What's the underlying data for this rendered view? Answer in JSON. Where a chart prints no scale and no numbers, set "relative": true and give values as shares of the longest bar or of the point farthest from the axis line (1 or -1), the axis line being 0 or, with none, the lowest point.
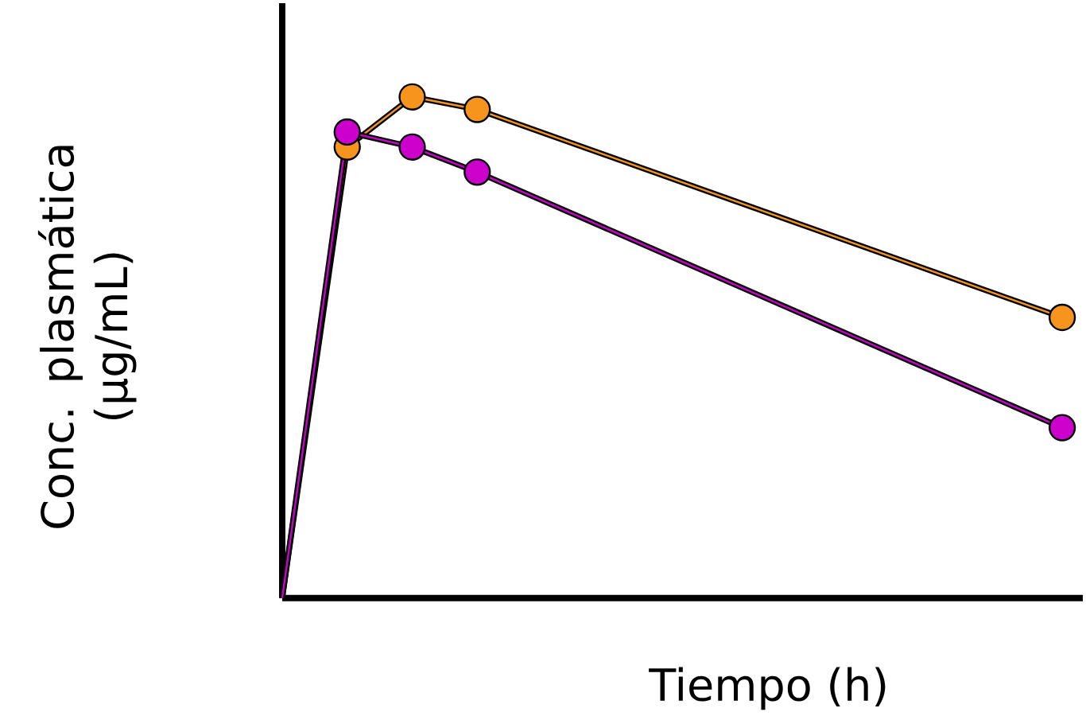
{
  "chart_data": {
    "type": "line",
    "relative": true,
    "xlabel": "Tiempo (h)",
    "ylabel": "Conc. plasmática (µg/mL)",
    "marker": "circle",
    "categories": [
      null,
      null,
      null,
      null,
      null,
      null,
      null,
      null,
      null,
      null,
      null,
      null,
      null
    ],
    "series": [
      {
        "color": "#f7941d",
        "values": [
          0,
          0.9,
          1,
          0.975,
          null,
          null,
          null,
          null,
          null,
          null,
          null,
          null,
          0.56
        ]
      },
      {
        "color": "#cc00cc",
        "values": [
          0,
          0.93,
          0.9,
          0.85,
          null,
          null,
          null,
          null,
          null,
          null,
          null,
          null,
          0.34
        ]
      }
    ]
  }
}
